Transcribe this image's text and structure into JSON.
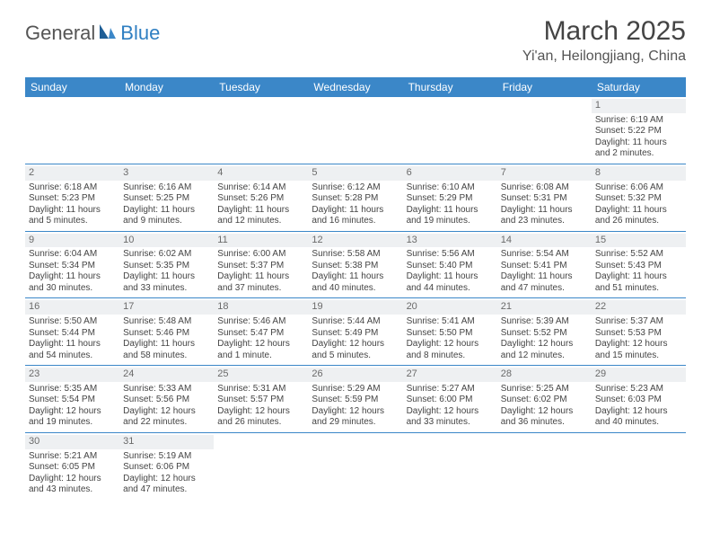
{
  "brand": {
    "part1": "General",
    "part2": "Blue"
  },
  "header": {
    "month_title": "March 2025",
    "location": "Yi'an, Heilongjiang, China"
  },
  "calendar": {
    "type": "table",
    "header_bg": "#3b87c8",
    "header_fg": "#ffffff",
    "daynum_bg": "#eef0f2",
    "daynum_fg": "#6a6a6a",
    "row_border_color": "#3b87c8",
    "day_headers": [
      "Sunday",
      "Monday",
      "Tuesday",
      "Wednesday",
      "Thursday",
      "Friday",
      "Saturday"
    ],
    "weeks": [
      [
        null,
        null,
        null,
        null,
        null,
        null,
        {
          "n": "1",
          "sunrise": "Sunrise: 6:19 AM",
          "sunset": "Sunset: 5:22 PM",
          "daylight": "Daylight: 11 hours and 2 minutes."
        }
      ],
      [
        {
          "n": "2",
          "sunrise": "Sunrise: 6:18 AM",
          "sunset": "Sunset: 5:23 PM",
          "daylight": "Daylight: 11 hours and 5 minutes."
        },
        {
          "n": "3",
          "sunrise": "Sunrise: 6:16 AM",
          "sunset": "Sunset: 5:25 PM",
          "daylight": "Daylight: 11 hours and 9 minutes."
        },
        {
          "n": "4",
          "sunrise": "Sunrise: 6:14 AM",
          "sunset": "Sunset: 5:26 PM",
          "daylight": "Daylight: 11 hours and 12 minutes."
        },
        {
          "n": "5",
          "sunrise": "Sunrise: 6:12 AM",
          "sunset": "Sunset: 5:28 PM",
          "daylight": "Daylight: 11 hours and 16 minutes."
        },
        {
          "n": "6",
          "sunrise": "Sunrise: 6:10 AM",
          "sunset": "Sunset: 5:29 PM",
          "daylight": "Daylight: 11 hours and 19 minutes."
        },
        {
          "n": "7",
          "sunrise": "Sunrise: 6:08 AM",
          "sunset": "Sunset: 5:31 PM",
          "daylight": "Daylight: 11 hours and 23 minutes."
        },
        {
          "n": "8",
          "sunrise": "Sunrise: 6:06 AM",
          "sunset": "Sunset: 5:32 PM",
          "daylight": "Daylight: 11 hours and 26 minutes."
        }
      ],
      [
        {
          "n": "9",
          "sunrise": "Sunrise: 6:04 AM",
          "sunset": "Sunset: 5:34 PM",
          "daylight": "Daylight: 11 hours and 30 minutes."
        },
        {
          "n": "10",
          "sunrise": "Sunrise: 6:02 AM",
          "sunset": "Sunset: 5:35 PM",
          "daylight": "Daylight: 11 hours and 33 minutes."
        },
        {
          "n": "11",
          "sunrise": "Sunrise: 6:00 AM",
          "sunset": "Sunset: 5:37 PM",
          "daylight": "Daylight: 11 hours and 37 minutes."
        },
        {
          "n": "12",
          "sunrise": "Sunrise: 5:58 AM",
          "sunset": "Sunset: 5:38 PM",
          "daylight": "Daylight: 11 hours and 40 minutes."
        },
        {
          "n": "13",
          "sunrise": "Sunrise: 5:56 AM",
          "sunset": "Sunset: 5:40 PM",
          "daylight": "Daylight: 11 hours and 44 minutes."
        },
        {
          "n": "14",
          "sunrise": "Sunrise: 5:54 AM",
          "sunset": "Sunset: 5:41 PM",
          "daylight": "Daylight: 11 hours and 47 minutes."
        },
        {
          "n": "15",
          "sunrise": "Sunrise: 5:52 AM",
          "sunset": "Sunset: 5:43 PM",
          "daylight": "Daylight: 11 hours and 51 minutes."
        }
      ],
      [
        {
          "n": "16",
          "sunrise": "Sunrise: 5:50 AM",
          "sunset": "Sunset: 5:44 PM",
          "daylight": "Daylight: 11 hours and 54 minutes."
        },
        {
          "n": "17",
          "sunrise": "Sunrise: 5:48 AM",
          "sunset": "Sunset: 5:46 PM",
          "daylight": "Daylight: 11 hours and 58 minutes."
        },
        {
          "n": "18",
          "sunrise": "Sunrise: 5:46 AM",
          "sunset": "Sunset: 5:47 PM",
          "daylight": "Daylight: 12 hours and 1 minute."
        },
        {
          "n": "19",
          "sunrise": "Sunrise: 5:44 AM",
          "sunset": "Sunset: 5:49 PM",
          "daylight": "Daylight: 12 hours and 5 minutes."
        },
        {
          "n": "20",
          "sunrise": "Sunrise: 5:41 AM",
          "sunset": "Sunset: 5:50 PM",
          "daylight": "Daylight: 12 hours and 8 minutes."
        },
        {
          "n": "21",
          "sunrise": "Sunrise: 5:39 AM",
          "sunset": "Sunset: 5:52 PM",
          "daylight": "Daylight: 12 hours and 12 minutes."
        },
        {
          "n": "22",
          "sunrise": "Sunrise: 5:37 AM",
          "sunset": "Sunset: 5:53 PM",
          "daylight": "Daylight: 12 hours and 15 minutes."
        }
      ],
      [
        {
          "n": "23",
          "sunrise": "Sunrise: 5:35 AM",
          "sunset": "Sunset: 5:54 PM",
          "daylight": "Daylight: 12 hours and 19 minutes."
        },
        {
          "n": "24",
          "sunrise": "Sunrise: 5:33 AM",
          "sunset": "Sunset: 5:56 PM",
          "daylight": "Daylight: 12 hours and 22 minutes."
        },
        {
          "n": "25",
          "sunrise": "Sunrise: 5:31 AM",
          "sunset": "Sunset: 5:57 PM",
          "daylight": "Daylight: 12 hours and 26 minutes."
        },
        {
          "n": "26",
          "sunrise": "Sunrise: 5:29 AM",
          "sunset": "Sunset: 5:59 PM",
          "daylight": "Daylight: 12 hours and 29 minutes."
        },
        {
          "n": "27",
          "sunrise": "Sunrise: 5:27 AM",
          "sunset": "Sunset: 6:00 PM",
          "daylight": "Daylight: 12 hours and 33 minutes."
        },
        {
          "n": "28",
          "sunrise": "Sunrise: 5:25 AM",
          "sunset": "Sunset: 6:02 PM",
          "daylight": "Daylight: 12 hours and 36 minutes."
        },
        {
          "n": "29",
          "sunrise": "Sunrise: 5:23 AM",
          "sunset": "Sunset: 6:03 PM",
          "daylight": "Daylight: 12 hours and 40 minutes."
        }
      ],
      [
        {
          "n": "30",
          "sunrise": "Sunrise: 5:21 AM",
          "sunset": "Sunset: 6:05 PM",
          "daylight": "Daylight: 12 hours and 43 minutes."
        },
        {
          "n": "31",
          "sunrise": "Sunrise: 5:19 AM",
          "sunset": "Sunset: 6:06 PM",
          "daylight": "Daylight: 12 hours and 47 minutes."
        },
        null,
        null,
        null,
        null,
        null
      ]
    ]
  }
}
